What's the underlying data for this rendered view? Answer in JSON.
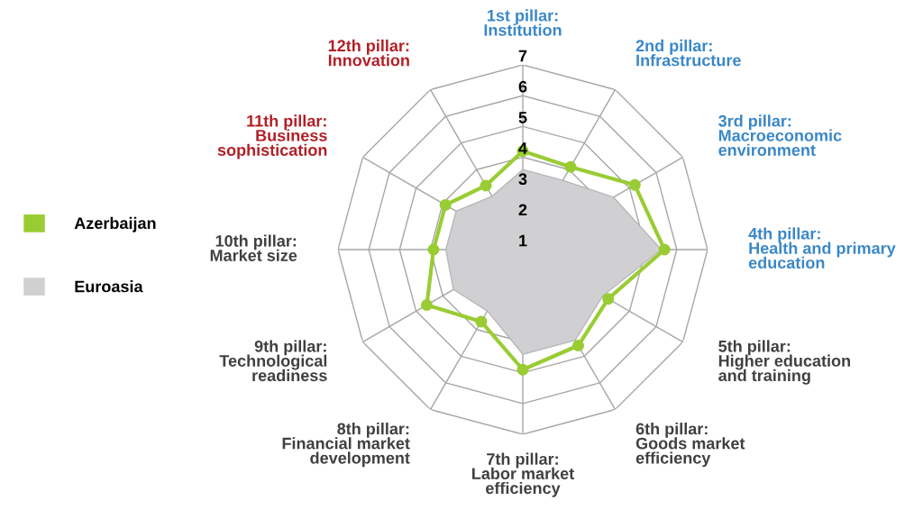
{
  "chart_data": {
    "type": "radar",
    "categories": [
      "1st pillar:\nInstitution",
      "2nd pillar:\nInfrastructure",
      "3rd pillar:\nMacroeconomic\nenvironment",
      "4th pillar:\nHealth and primary\neducation",
      "5th pillar:\nHigher education\nand training",
      "6th pillar:\nGoods market\nefficiency",
      "7th pillar:\nLabor market\nefficiency",
      "8th pillar:\nFinancial market\ndevelopment",
      "9th pillar:\nTechnological\nreadiness",
      "10th pillar:\nMarket size",
      "11th pillar:\nBusiness\nsophistication",
      "12th pillar:\nInnovation"
    ],
    "series": [
      {
        "name": "Azerbaijan",
        "color": "#99cc33",
        "marker": "circle",
        "values": [
          4.2,
          4.1,
          5.2,
          5.6,
          4.2,
          4.6,
          4.9,
          3.7,
          4.6,
          3.9,
          3.9,
          3.4
        ]
      },
      {
        "name": "Euroasia",
        "type": "area",
        "color": "#d0d0d2",
        "values": [
          3.6,
          3.6,
          4.4,
          5.5,
          4.0,
          4.4,
          4.4,
          3.3,
          3.6,
          3.5,
          3.5,
          3.0
        ]
      }
    ],
    "ylim": [
      1,
      7
    ],
    "yticks": [
      1,
      2,
      3,
      4,
      5,
      6,
      7
    ],
    "grid": true,
    "legend": "left"
  }
}
